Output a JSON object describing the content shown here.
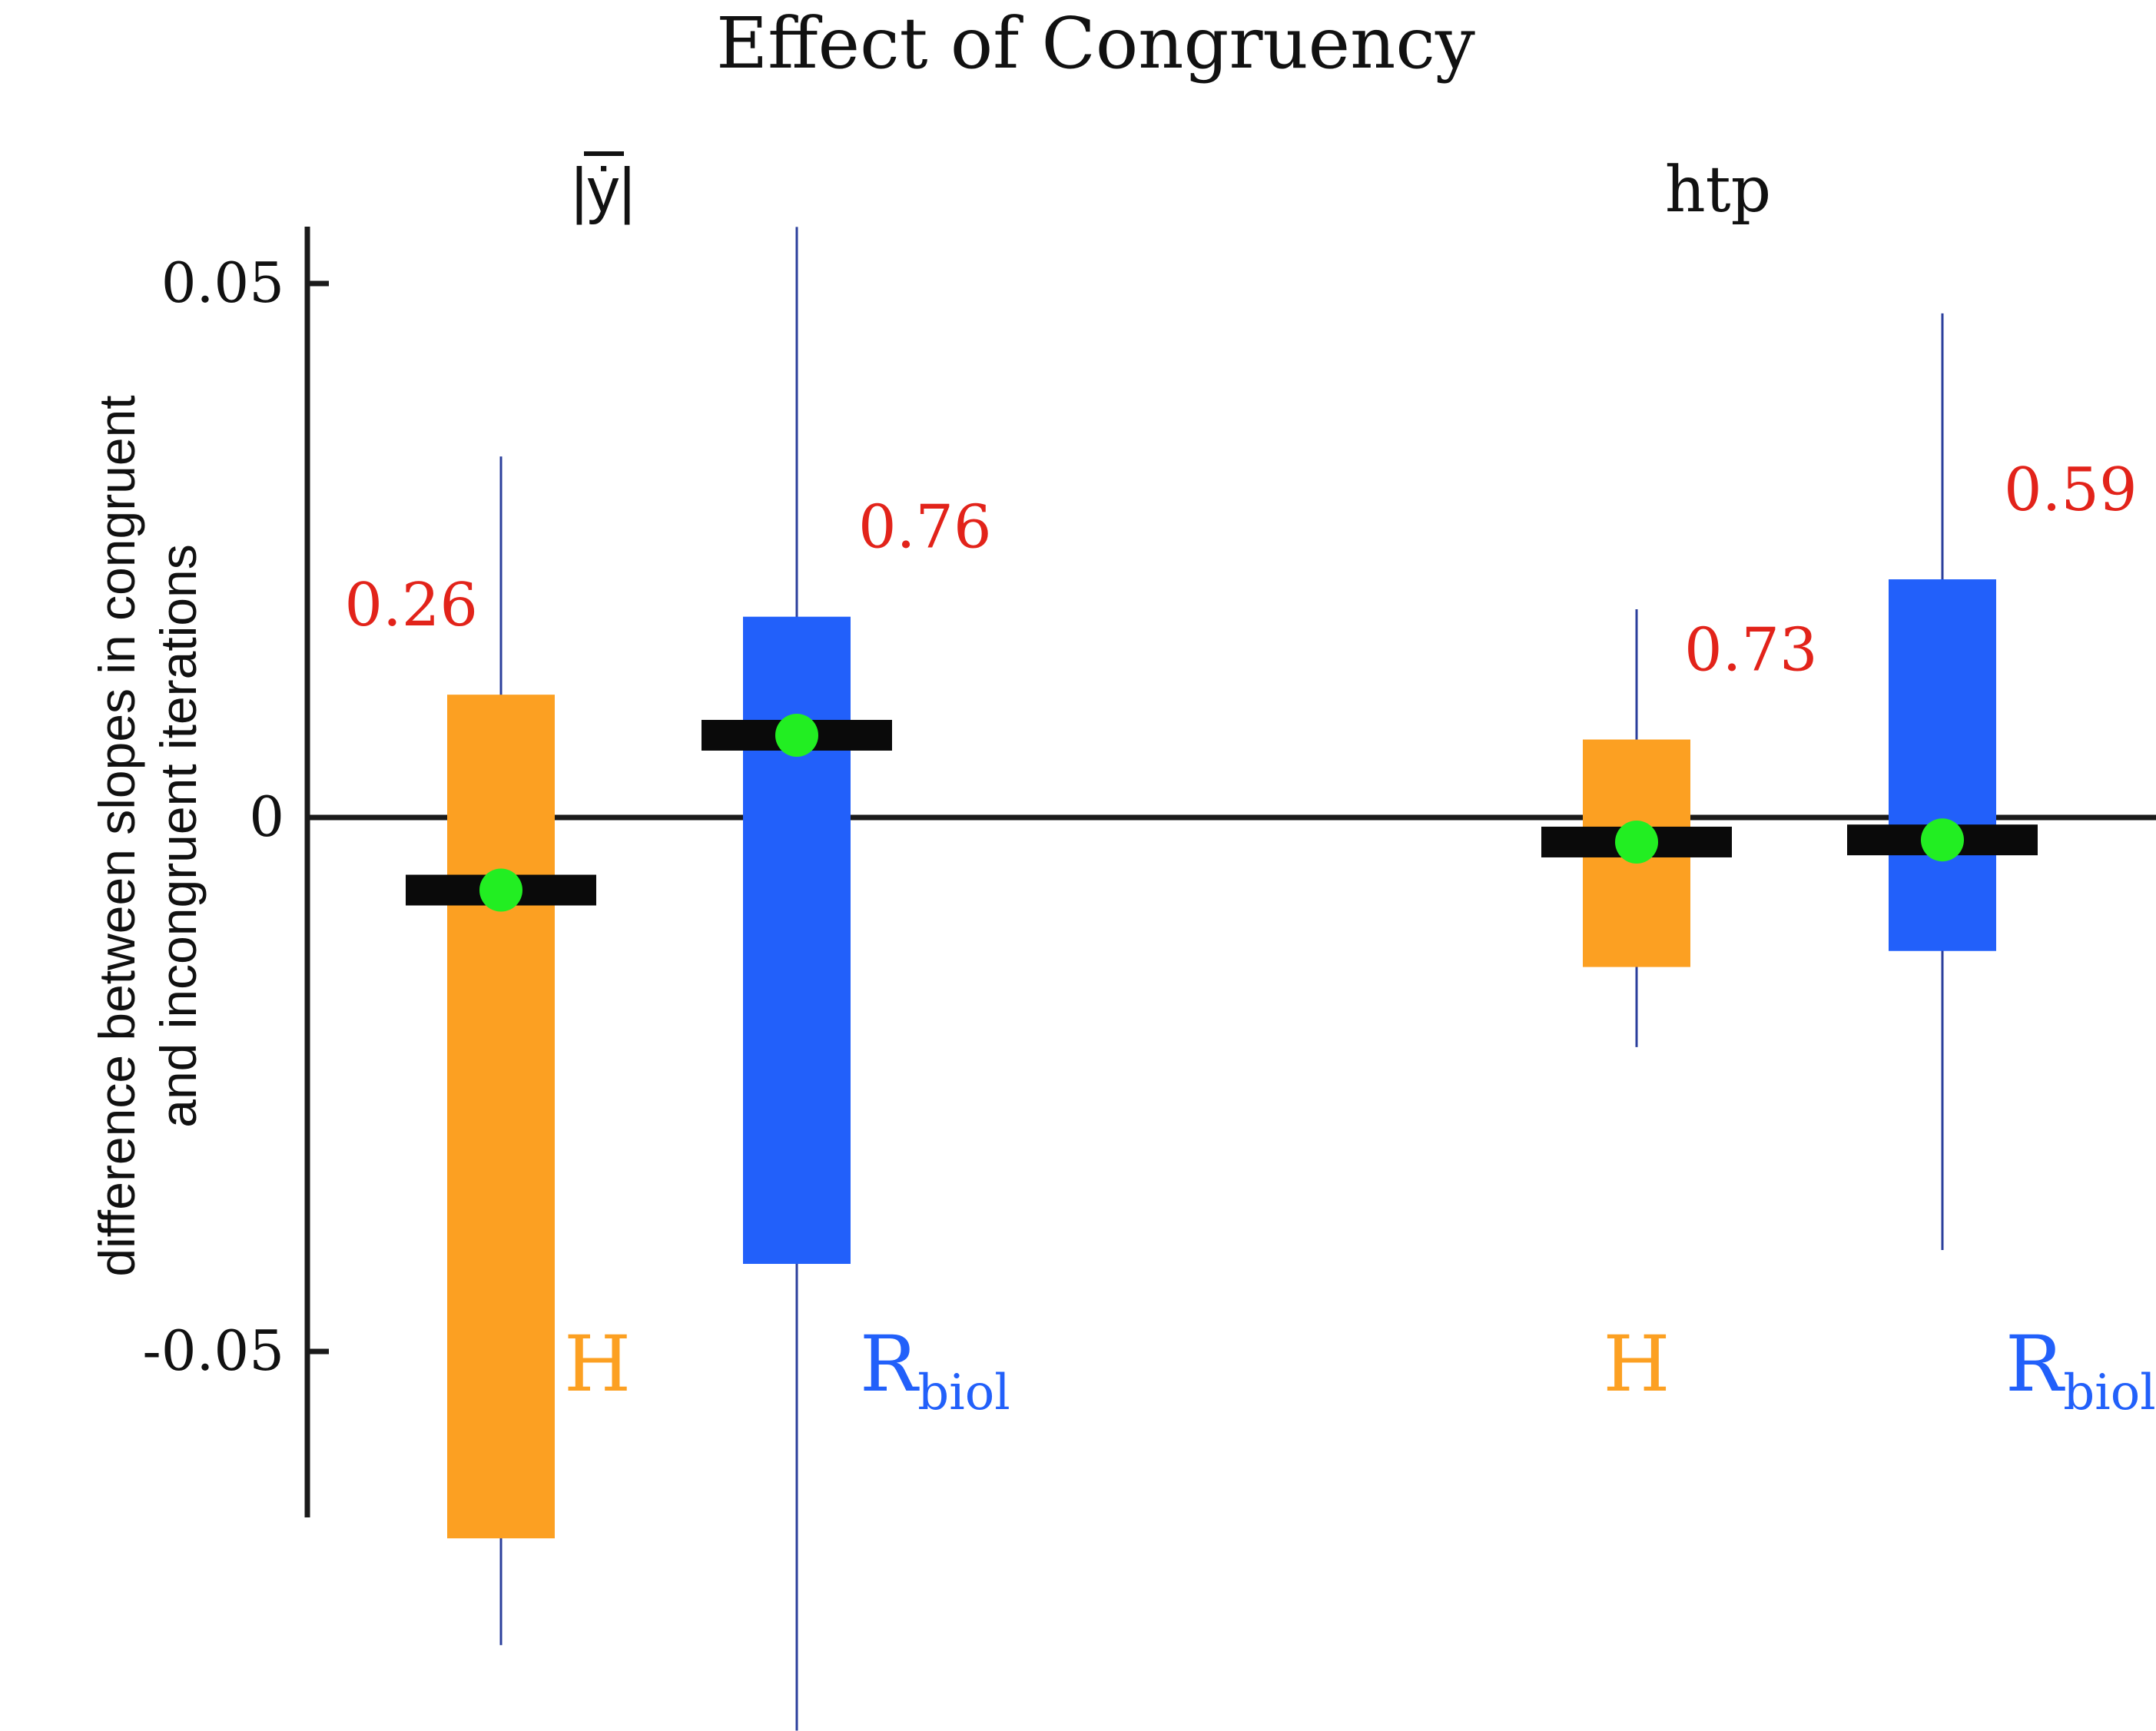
{
  "chart_data": {
    "type": "box",
    "title": "Effect of Congruency",
    "ylabel_line1": "difference between slopes in congruent",
    "ylabel_line2": "and incongruent iterations",
    "ylim": [
      -0.065,
      0.06
    ],
    "yticks": [
      {
        "value": 0.05,
        "label": "0.05"
      },
      {
        "value": 0,
        "label": "0"
      },
      {
        "value": -0.05,
        "label": "-0.05"
      }
    ],
    "zero_line": true,
    "groups": [
      {
        "label": "|ẏ|",
        "boxes": [
          {
            "series": "H",
            "label_main": "H",
            "label_sub": "",
            "color": "#FCA022",
            "whisker_low": -0.0775,
            "q1": -0.0675,
            "median": -0.0068,
            "mean": -0.0068,
            "q3": 0.0115,
            "whisker_high": 0.0338,
            "p_value": "0.26"
          },
          {
            "series": "R_biol",
            "label_main": "R",
            "label_sub": "biol",
            "color": "#2260FA",
            "whisker_low": -0.0855,
            "q1": -0.0418,
            "median": 0.0077,
            "mean": 0.0077,
            "q3": 0.0188,
            "whisker_high": 0.0553,
            "p_value": "0.76"
          }
        ]
      },
      {
        "label": "htp",
        "boxes": [
          {
            "series": "H",
            "label_main": "H",
            "label_sub": "",
            "color": "#FCA022",
            "whisker_low": -0.0215,
            "q1": -0.014,
            "median": -0.0023,
            "mean": -0.0023,
            "q3": 0.0073,
            "whisker_high": 0.0195,
            "p_value": "0.73"
          },
          {
            "series": "R_biol",
            "label_main": "R",
            "label_sub": "biol",
            "color": "#2260FA",
            "whisker_low": -0.0405,
            "q1": -0.0125,
            "median": -0.0021,
            "mean": -0.0021,
            "q3": 0.0223,
            "whisker_high": 0.0472,
            "p_value": "0.59"
          }
        ]
      }
    ],
    "colors": {
      "median_bar": "#0a0a0a",
      "mean_dot": "#22EE22",
      "whisker": "#2B3F9C",
      "p_value_text": "#E2231A",
      "axis": "#1a1a1a"
    }
  }
}
